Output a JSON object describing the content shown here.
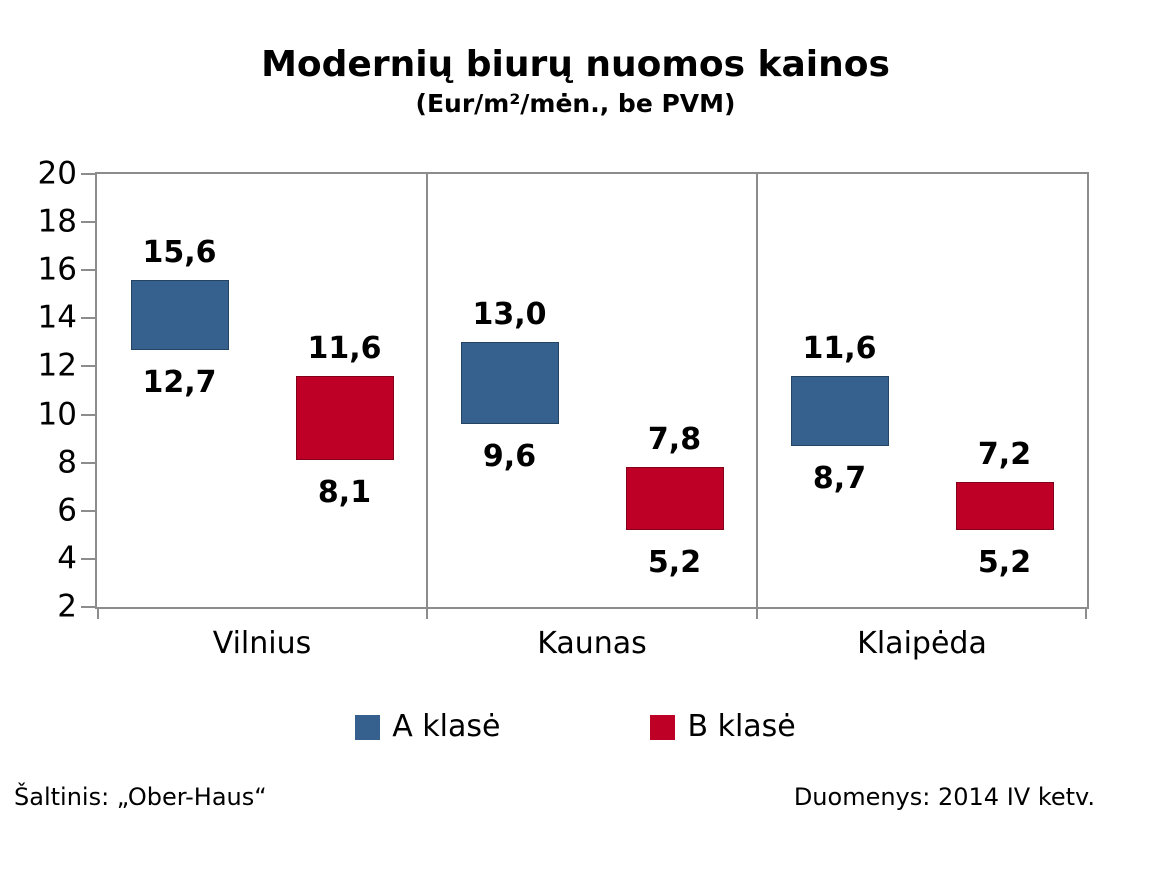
{
  "title": "Modernių biurų nuomos kainos",
  "subtitle": "(Eur/m²/mėn., be PVM)",
  "footer": {
    "source": "Šaltinis: „Ober-Haus“",
    "data_note": "Duomenys: 2014 IV ketv."
  },
  "colors": {
    "a_class_blue": "#36618E",
    "b_class_red": "#BE0026",
    "axis_gray": "#8C8C8C",
    "text": "#000000",
    "background": "#FFFFFF"
  },
  "chart_data": {
    "type": "bar",
    "subtype": "floating-range-columns",
    "title": "Modernių biurų nuomos kainos",
    "subtitle": "(Eur/m²/mėn., be PVM)",
    "categories": [
      "Vilnius",
      "Kaunas",
      "Klaipėda"
    ],
    "ylim": [
      2,
      20
    ],
    "yticks": [
      20,
      18,
      16,
      14,
      12,
      10,
      8,
      6,
      4,
      2
    ],
    "ytick_step": 2,
    "grid": false,
    "legend_position": "bottom",
    "axis_color": "#8C8C8C",
    "series": [
      {
        "name": "A klasė",
        "color": "#36618E",
        "points": [
          {
            "category": "Vilnius",
            "min": 12.7,
            "max": 15.6,
            "min_label": "12,7",
            "max_label": "15,6"
          },
          {
            "category": "Kaunas",
            "min": 9.6,
            "max": 13.0,
            "min_label": "9,6",
            "max_label": "13,0"
          },
          {
            "category": "Klaipėda",
            "min": 8.7,
            "max": 11.6,
            "min_label": "8,7",
            "max_label": "11,6"
          }
        ]
      },
      {
        "name": "B klasė",
        "color": "#BE0026",
        "points": [
          {
            "category": "Vilnius",
            "min": 8.1,
            "max": 11.6,
            "min_label": "8,1",
            "max_label": "11,6"
          },
          {
            "category": "Kaunas",
            "min": 5.2,
            "max": 7.8,
            "min_label": "5,2",
            "max_label": "7,8"
          },
          {
            "category": "Klaipėda",
            "min": 5.2,
            "max": 7.2,
            "min_label": "5,2",
            "max_label": "7,2"
          }
        ]
      }
    ]
  }
}
